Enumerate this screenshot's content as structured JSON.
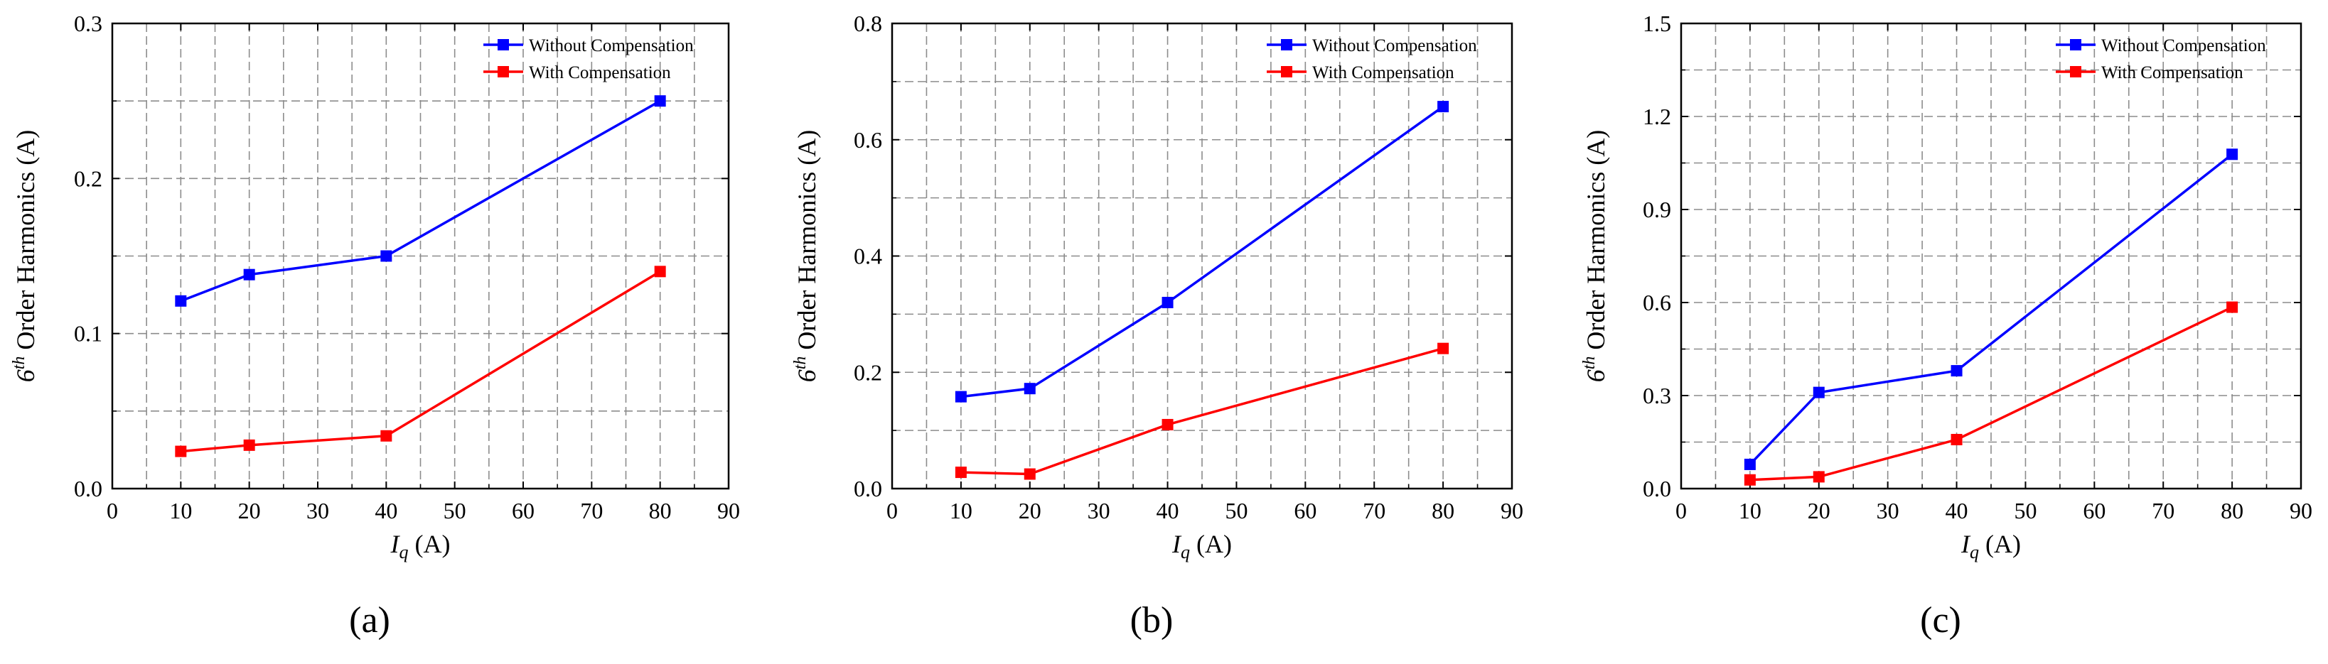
{
  "figure": {
    "series_colors": {
      "without": "#0000ff",
      "with": "#ff0000"
    },
    "grid_color": "#8c8c8c"
  },
  "chart_data": [
    {
      "type": "line",
      "panel_label": "(a)",
      "xlabel_main": "I",
      "xlabel_sub": "q",
      "xlabel_unit": " (A)",
      "ylabel_prefix": "6",
      "ylabel_sup": "th",
      "ylabel_rest": " Order Harmonics (A)",
      "xlim": [
        0,
        90
      ],
      "ylim": [
        0,
        0.3
      ],
      "xticks": [
        0,
        10,
        20,
        30,
        40,
        50,
        60,
        70,
        80,
        90
      ],
      "yticks": [
        0,
        0.1,
        0.2,
        0.3
      ],
      "ytick_labels": [
        "0.0",
        "0.1",
        "0.2",
        "0.3"
      ],
      "minor_grid_x": [
        5,
        15,
        25,
        35,
        45,
        55,
        65,
        75,
        85
      ],
      "minor_grid_y": [
        0.05,
        0.15,
        0.25
      ],
      "legend_position": "top-right",
      "series": [
        {
          "name": "Without Compensation",
          "color": "#0000ff",
          "x": [
            10,
            20,
            40,
            80
          ],
          "values": [
            0.121,
            0.138,
            0.15,
            0.25
          ]
        },
        {
          "name": "With Compensation",
          "color": "#ff0000",
          "x": [
            10,
            20,
            40,
            80
          ],
          "values": [
            0.024,
            0.028,
            0.034,
            0.14
          ]
        }
      ]
    },
    {
      "type": "line",
      "panel_label": "(b)",
      "xlabel_main": "I",
      "xlabel_sub": "q",
      "xlabel_unit": " (A)",
      "ylabel_prefix": "6",
      "ylabel_sup": "th",
      "ylabel_rest": " Order Harmonics (A)",
      "xlim": [
        0,
        90
      ],
      "ylim": [
        0,
        0.8
      ],
      "xticks": [
        0,
        10,
        20,
        30,
        40,
        50,
        60,
        70,
        80,
        90
      ],
      "yticks": [
        0,
        0.2,
        0.4,
        0.6,
        0.8
      ],
      "ytick_labels": [
        "0.0",
        "0.2",
        "0.4",
        "0.6",
        "0.8"
      ],
      "minor_grid_x": [
        5,
        15,
        25,
        35,
        45,
        55,
        65,
        75,
        85
      ],
      "minor_grid_y": [
        0.1,
        0.3,
        0.5,
        0.7
      ],
      "legend_position": "top-right",
      "series": [
        {
          "name": "Without Compensation",
          "color": "#0000ff",
          "x": [
            10,
            20,
            40,
            80
          ],
          "values": [
            0.158,
            0.172,
            0.32,
            0.657
          ]
        },
        {
          "name": "With Compensation",
          "color": "#ff0000",
          "x": [
            10,
            20,
            40,
            80
          ],
          "values": [
            0.028,
            0.025,
            0.11,
            0.241
          ]
        }
      ]
    },
    {
      "type": "line",
      "panel_label": "(c)",
      "xlabel_main": "I",
      "xlabel_sub": "q",
      "xlabel_unit": " (A)",
      "ylabel_prefix": "6",
      "ylabel_sup": "th",
      "ylabel_rest": " Order Harmonics (A)",
      "xlim": [
        0,
        90
      ],
      "ylim": [
        0,
        1.5
      ],
      "xticks": [
        0,
        10,
        20,
        30,
        40,
        50,
        60,
        70,
        80,
        90
      ],
      "yticks": [
        0,
        0.3,
        0.6,
        0.9,
        1.2,
        1.5
      ],
      "ytick_labels": [
        "0.0",
        "0.3",
        "0.6",
        "0.9",
        "1.2",
        "1.5"
      ],
      "minor_grid_x": [
        5,
        15,
        25,
        35,
        45,
        55,
        65,
        75,
        85
      ],
      "minor_grid_y": [
        0.15,
        0.45,
        0.75,
        1.05,
        1.35
      ],
      "legend_position": "top-right",
      "series": [
        {
          "name": "Without Compensation",
          "color": "#0000ff",
          "x": [
            10,
            20,
            40,
            80
          ],
          "values": [
            0.078,
            0.31,
            0.38,
            1.078
          ]
        },
        {
          "name": "With Compensation",
          "color": "#ff0000",
          "x": [
            10,
            20,
            40,
            80
          ],
          "values": [
            0.028,
            0.038,
            0.158,
            0.585
          ]
        }
      ]
    }
  ]
}
